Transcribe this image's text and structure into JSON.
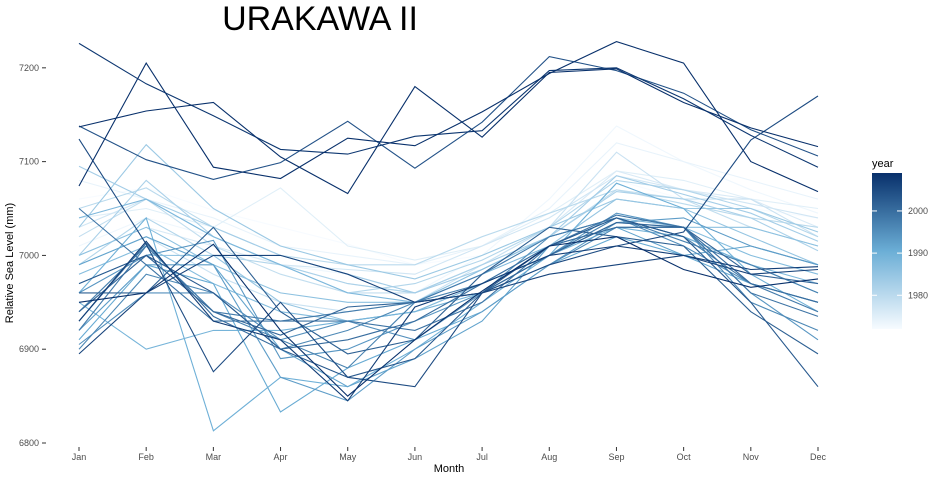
{
  "chart_data": {
    "type": "line",
    "title": "URAKAWA II",
    "xlabel": "Month",
    "ylabel": "Relative Sea Level (mm)",
    "categories": [
      "Jan",
      "Feb",
      "Mar",
      "Apr",
      "May",
      "Jun",
      "Jul",
      "Aug",
      "Sep",
      "Oct",
      "Nov",
      "Dec"
    ],
    "ylim": [
      6800,
      7235
    ],
    "yticks": [
      6800,
      6900,
      7000,
      7100,
      7200
    ],
    "grid": false,
    "legend": {
      "title": "year",
      "position": "right",
      "ticks": [
        1980,
        1990,
        2000
      ],
      "range": [
        1972,
        2009
      ],
      "color_low": "#f7fbff",
      "color_high": "#08306b"
    },
    "series": [
      {
        "year": 1972,
        "values": [
          7060,
          7072,
          7048,
          7030,
          7012,
          6990,
          7000,
          7030,
          7080,
          7060,
          7050,
          7040
        ]
      },
      {
        "year": 1973,
        "values": [
          7010,
          7040,
          7020,
          6990,
          6980,
          6960,
          7000,
          7060,
          7138,
          7100,
          7070,
          7045
        ]
      },
      {
        "year": 1974,
        "values": [
          7080,
          7060,
          7040,
          7010,
          7000,
          6990,
          7010,
          7050,
          7120,
          7100,
          7080,
          7060
        ]
      },
      {
        "year": 1975,
        "values": [
          7040,
          7050,
          7030,
          7072,
          7010,
          6995,
          7010,
          7045,
          7090,
          7080,
          7060,
          7050
        ]
      },
      {
        "year": 1976,
        "values": [
          7000,
          7030,
          7010,
          6990,
          6970,
          6960,
          6990,
          7030,
          7090,
          7070,
          7060,
          7030
        ]
      },
      {
        "year": 1977,
        "values": [
          7030,
          7060,
          7020,
          6990,
          6985,
          6980,
          7010,
          7040,
          7085,
          7070,
          7055,
          7040
        ]
      },
      {
        "year": 1978,
        "values": [
          6990,
          7020,
          6980,
          6950,
          6940,
          6950,
          6990,
          7030,
          7110,
          7060,
          7060,
          7020
        ]
      },
      {
        "year": 1979,
        "values": [
          7020,
          7060,
          7010,
          6980,
          6960,
          6960,
          6990,
          7020,
          7070,
          7060,
          7030,
          7010
        ]
      },
      {
        "year": 1980,
        "values": [
          7050,
          7072,
          7030,
          7000,
          6990,
          6990,
          7020,
          7045,
          7070,
          7055,
          7040,
          7030
        ]
      },
      {
        "year": 1981,
        "values": [
          6990,
          7040,
          7000,
          6990,
          6960,
          6970,
          6995,
          7030,
          7080,
          7070,
          7050,
          7020
        ]
      },
      {
        "year": 1982,
        "values": [
          7000,
          7080,
          7020,
          6990,
          6970,
          6960,
          6990,
          7020,
          7068,
          7060,
          7040,
          7005
        ]
      },
      {
        "year": 1983,
        "values": [
          7095,
          7060,
          7030,
          7000,
          6980,
          6960,
          6985,
          7020,
          7085,
          7065,
          7045,
          7015
        ]
      },
      {
        "year": 1984,
        "values": [
          7030,
          7118,
          7050,
          7010,
          6990,
          6975,
          7000,
          7030,
          7060,
          7050,
          7050,
          7025
        ]
      },
      {
        "year": 1985,
        "values": [
          6970,
          7000,
          7000,
          6950,
          6930,
          6940,
          6970,
          7010,
          7060,
          7050,
          7020,
          6990
        ]
      },
      {
        "year": 1986,
        "values": [
          7000,
          7030,
          6990,
          6960,
          6950,
          6950,
          6985,
          7020,
          7040,
          7030,
          7030,
          7010
        ]
      },
      {
        "year": 1987,
        "values": [
          6980,
          7010,
          6970,
          6940,
          6930,
          6940,
          6970,
          7000,
          7035,
          7030,
          7000,
          6980
        ]
      },
      {
        "year": 1988,
        "values": [
          7040,
          7060,
          7020,
          6990,
          6960,
          6950,
          6980,
          7010,
          7040,
          7020,
          6990,
          6970
        ]
      },
      {
        "year": 1989,
        "values": [
          6950,
          6900,
          6920,
          6920,
          6930,
          6940,
          6960,
          7000,
          7030,
          7020,
          6990,
          6960
        ]
      },
      {
        "year": 1990,
        "values": [
          6960,
          7040,
          6813,
          6870,
          6860,
          6900,
          6950,
          7000,
          7077,
          7050,
          6980,
          6940
        ]
      },
      {
        "year": 1991,
        "values": [
          6910,
          6990,
          6970,
          6833,
          6880,
          6910,
          6940,
          6990,
          7020,
          7000,
          6970,
          6950
        ]
      },
      {
        "year": 1992,
        "values": [
          6990,
          7020,
          6990,
          6900,
          6860,
          6890,
          6930,
          7010,
          7030,
          7000,
          7010,
          6990
        ]
      },
      {
        "year": 1993,
        "values": [
          6920,
          6990,
          6990,
          6870,
          6845,
          6900,
          6940,
          6990,
          7035,
          7040,
          7010,
          6990
        ]
      },
      {
        "year": 1994,
        "values": [
          6960,
          7000,
          7016,
          6890,
          6900,
          6930,
          6960,
          7000,
          7045,
          7030,
          6960,
          6910
        ]
      },
      {
        "year": 1995,
        "values": [
          6905,
          6960,
          6960,
          6910,
          6930,
          6910,
          6960,
          7020,
          7040,
          7010,
          6970,
          6950
        ]
      },
      {
        "year": 1996,
        "values": [
          6900,
          6980,
          6960,
          6900,
          6920,
          6950,
          6960,
          6990,
          7030,
          7030,
          6950,
          6920
        ]
      },
      {
        "year": 1997,
        "values": [
          6940,
          7010,
          6940,
          6910,
          6880,
          6950,
          6970,
          7000,
          7040,
          7015,
          6990,
          6960
        ]
      },
      {
        "year": 1998,
        "values": [
          6920,
          7010,
          6940,
          6930,
          6940,
          6950,
          6980,
          7020,
          7040,
          7020,
          6970,
          6940
        ]
      },
      {
        "year": 1999,
        "values": [
          7050,
          6990,
          6930,
          6930,
          6930,
          6920,
          6950,
          7010,
          7043,
          7030,
          6960,
          6935
        ]
      },
      {
        "year": 2000,
        "values": [
          6930,
          7013,
          6935,
          6900,
          6910,
          6930,
          6970,
          7010,
          7030,
          7030,
          6970,
          6950
        ]
      },
      {
        "year": 2001,
        "values": [
          6940,
          7000,
          6940,
          6915,
          6945,
          6950,
          6960,
          7000,
          7035,
          7030,
          6980,
          6970
        ]
      },
      {
        "year": 2002,
        "values": [
          6960,
          6960,
          7030,
          6940,
          6895,
          6910,
          6980,
          7030,
          7020,
          7010,
          6940,
          6895
        ]
      },
      {
        "year": 2003,
        "values": [
          6970,
          7000,
          6960,
          6900,
          6870,
          6890,
          6960,
          7010,
          7040,
          7020,
          6950,
          6860
        ]
      },
      {
        "year": 2004,
        "values": [
          7138,
          7102,
          7081,
          7099,
          7143,
          7093,
          7142,
          7212,
          7197,
          7173,
          7134,
          7106
        ]
      },
      {
        "year": 2005,
        "values": [
          7124,
          7012,
          6876,
          6950,
          6870,
          6860,
          6960,
          6990,
          7010,
          7025,
          7123,
          7170
        ]
      },
      {
        "year": 2006,
        "values": [
          6895,
          6960,
          7000,
          7000,
          6980,
          6950,
          6960,
          6980,
          6990,
          7000,
          6980,
          6985
        ]
      },
      {
        "year": 2007,
        "values": [
          6930,
          7015,
          6930,
          6910,
          6845,
          6945,
          6970,
          7000,
          7010,
          7000,
          6985,
          6988
        ]
      },
      {
        "year": 2008,
        "values": [
          7226,
          7183,
          7149,
          7113,
          7108,
          7127,
          7133,
          7197,
          7200,
          7167,
          7128,
          7094
        ]
      },
      {
        "year": 2009,
        "values": [
          7074,
          7205,
          7094,
          7082,
          7125,
          7117,
          7153,
          7194,
          7228,
          7205,
          7100,
          7068
        ]
      },
      {
        "year": 2009,
        "values": [
          7137,
          7154,
          7163,
          7105,
          7066,
          7180,
          7126,
          7195,
          7199,
          7163,
          7136,
          7116
        ]
      },
      {
        "year": 2009,
        "values": [
          6950,
          6960,
          7012,
          6920,
          6850,
          6910,
          6962,
          7010,
          7020,
          6985,
          6966,
          6975
        ]
      }
    ]
  }
}
